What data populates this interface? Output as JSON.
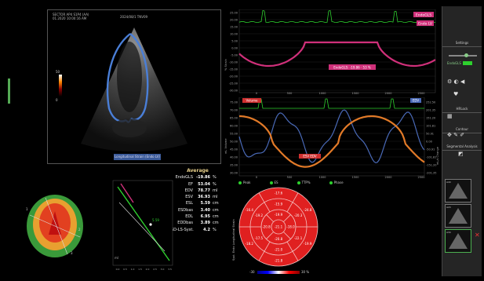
{
  "echo": {
    "header_line1": "SECTOR AP4 S1P4 (AA)",
    "header_line2": "01.2020 10:00:16 AM",
    "header_right": "2024/08/1 TNV09",
    "caption": "Longitudinal Strain (Endo LV)",
    "colorbar_top": "50",
    "colorbar_bottom": "0"
  },
  "strain_plot": {
    "label_endo": "EndoGLS",
    "label_epi": "Endo LV",
    "annotation": "EndoGLS: -19.86 · 53 %",
    "ylabel": "% Strain",
    "yticks": [
      "25.00",
      "20.00",
      "15.00",
      "10.00",
      "5.00",
      "0.00",
      "-5.00",
      "-10.00",
      "-15.00",
      "-20.00",
      "-25.00",
      "-30.00"
    ],
    "xticks": [
      "0",
      "500",
      "1000",
      "1500",
      "2000",
      "2500"
    ],
    "colors": {
      "curve": "#d0307a",
      "dots": "#9c2a6a",
      "ecg": "#2ed02e"
    }
  },
  "volume_plot": {
    "label_left": "Volume",
    "label_right": "EDV",
    "annotation": "ESV  EDV",
    "ylabel": "mL Volume",
    "ylabel_right": "mL/s Change",
    "yticks_left": [
      "75.00",
      "70.00",
      "65.00",
      "60.00",
      "55.00",
      "50.00",
      "45.00",
      "40.00",
      "35.00",
      "30.00"
    ],
    "yticks_right": [
      "252.50",
      "201.35",
      "151.20",
      "101.81",
      "50.91",
      "0.00",
      "-50.91",
      "-101.81",
      "-151.20",
      "-201.35"
    ],
    "xticks": [
      "0",
      "500",
      "1000",
      "1500",
      "2000",
      "2500"
    ],
    "colors": {
      "volume": "#e27a28",
      "rate": "#4a6ab8",
      "ecg": "#2ed02e"
    }
  },
  "legend": [
    {
      "label": "Peak",
      "color": "#2ed02e"
    },
    {
      "label": "ES",
      "color": "#2ed02e"
    },
    {
      "label": "TTP%",
      "color": "#2ed02e"
    },
    {
      "label": "Phase",
      "color": "#2ed02e"
    }
  ],
  "average": {
    "title": "Average",
    "rows": [
      {
        "label": "EndoGLS",
        "value": "-19.86",
        "unit": "%"
      },
      {
        "label": "EF",
        "value": "53.04",
        "unit": "%"
      },
      {
        "label": "EDV",
        "value": "78.77",
        "unit": "ml"
      },
      {
        "label": "ESV",
        "value": "36.93",
        "unit": "ml"
      },
      {
        "label": "ESL",
        "value": "5.59",
        "unit": "cm"
      },
      {
        "label": "ESDbas",
        "value": "3.40",
        "unit": "cm"
      },
      {
        "label": "EDL",
        "value": "6.95",
        "unit": "cm"
      },
      {
        "label": "EDDbas",
        "value": "3.89",
        "unit": "cm"
      },
      {
        "label": "SD-LS-Syst.",
        "value": "4.2",
        "unit": "%"
      }
    ]
  },
  "bullseye": {
    "ylabel": "Syst. Endo Longitudinal Strain",
    "scale_low": "-30",
    "scale_high": "30 %",
    "ring1": [
      "-17.6",
      "-24.8",
      "-19.9",
      "-21.8",
      "-18.2",
      "-16.4"
    ],
    "ring2": [
      "-15.9",
      "-20.3",
      "-22.1",
      "-21.0",
      "-17.5",
      "-19.2"
    ],
    "ring3": [
      "-19.9",
      "-18.0",
      "-20.8",
      "-20.8"
    ],
    "apex": "-21.1",
    "color": "#e02020"
  },
  "regression": {
    "point_label": "5.59",
    "ylabel": "ml",
    "xticks": [
      "0.0",
      "0.5",
      "1.0",
      "1.5",
      "2.0",
      "2.5",
      "3.0",
      "3.5"
    ]
  },
  "side_panel": {
    "settings": "Settings",
    "endo_label": "EndoGLS",
    "hrlock": "HRLock",
    "contour": "Contour",
    "segmental": "Segmental Analysis"
  },
  "thumbnails": [
    {
      "label": "A4C"
    },
    {
      "label": "A2C"
    },
    {
      "label": "A3C"
    }
  ]
}
